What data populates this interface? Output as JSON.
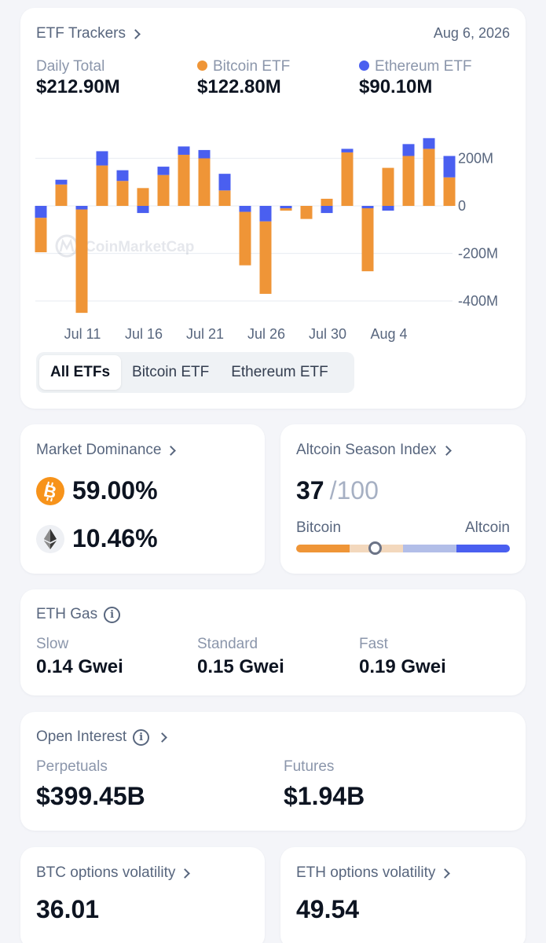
{
  "etf": {
    "title": "ETF Trackers",
    "date": "Aug 6, 2026",
    "daily_total_label": "Daily Total",
    "daily_total_value": "$212.90M",
    "btc_label": "Bitcoin ETF",
    "btc_value": "$122.80M",
    "eth_label": "Ethereum ETF",
    "eth_value": "$90.10M",
    "watermark": "CoinMarketCap",
    "tabs": [
      "All ETFs",
      "Bitcoin ETF",
      "Ethereum ETF"
    ],
    "active_tab": "All ETFs"
  },
  "colors": {
    "btc": "#ef9537",
    "eth": "#4a5ff0",
    "bg": "#f4f5f9",
    "slider_mid": "#b2bee8"
  },
  "chart_data": {
    "type": "bar",
    "stacked": true,
    "y_ticks": [
      "200M",
      "0",
      "-200M",
      "-400M"
    ],
    "y_tick_values": [
      200,
      0,
      -200,
      -400
    ],
    "ylim": [
      -440,
      300
    ],
    "x_ticks": [
      "Jul 11",
      "Jul 16",
      "Jul 21",
      "Jul 26",
      "Jul 30",
      "Aug 4"
    ],
    "x_tick_index": [
      2,
      5,
      8,
      11,
      14,
      17
    ],
    "grid": true,
    "unit": "M",
    "series": [
      {
        "name": "Bitcoin ETF",
        "values": [
          -145,
          90,
          -435,
          170,
          105,
          75,
          130,
          215,
          200,
          65,
          -225,
          -305,
          -10,
          -55,
          30,
          225,
          -265,
          160,
          210,
          240,
          120
        ]
      },
      {
        "name": "Ethereum ETF",
        "values": [
          -50,
          20,
          -15,
          60,
          45,
          -30,
          35,
          35,
          35,
          70,
          -25,
          -65,
          -10,
          0,
          -30,
          15,
          -10,
          -20,
          50,
          45,
          90
        ]
      }
    ]
  },
  "dominance": {
    "title": "Market Dominance",
    "btc_value": "59.00%",
    "eth_value": "10.46%",
    "btc_icon": "bitcoin-icon",
    "eth_icon": "ethereum-icon"
  },
  "altseason": {
    "title": "Altcoin Season Index",
    "value": "37",
    "max": "/100",
    "left_label": "Bitcoin",
    "right_label": "Altcoin",
    "index": 37
  },
  "gas": {
    "title": "ETH Gas",
    "slow_label": "Slow",
    "slow_value": "0.14 Gwei",
    "standard_label": "Standard",
    "standard_value": "0.15 Gwei",
    "fast_label": "Fast",
    "fast_value": "0.19 Gwei"
  },
  "open_interest": {
    "title": "Open Interest",
    "perp_label": "Perpetuals",
    "perp_value": "$399.45B",
    "fut_label": "Futures",
    "fut_value": "$1.94B"
  },
  "btc_vol": {
    "title": "BTC options volatility",
    "value": "36.01"
  },
  "eth_vol": {
    "title": "ETH options volatility",
    "value": "49.54"
  }
}
